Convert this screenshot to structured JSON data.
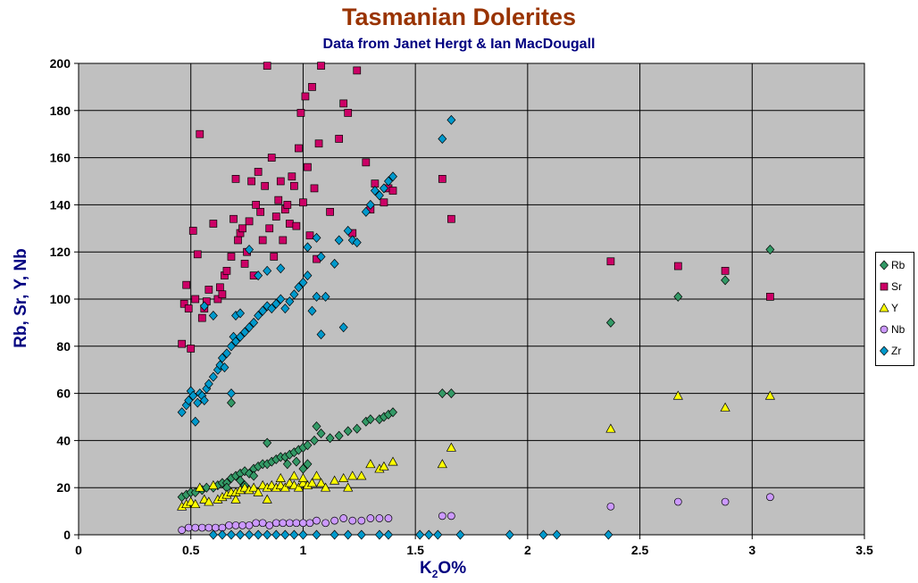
{
  "chart_data": {
    "type": "scatter",
    "title": "Tasmanian Dolerites",
    "subtitle": "Data from Janet Hergt & Ian MacDougall",
    "xlabel_main": "K",
    "xlabel_sub": "2",
    "xlabel_tail": "O%",
    "ylabel": "Rb, Sr, Y, Nb",
    "xlim": [
      0,
      3.5
    ],
    "ylim": [
      0,
      200
    ],
    "x_ticks": [
      "0",
      "0.5",
      "1",
      "1.5",
      "2",
      "2.5",
      "3",
      "3.5"
    ],
    "y_ticks": [
      "0",
      "20",
      "40",
      "60",
      "80",
      "100",
      "120",
      "140",
      "160",
      "180",
      "200"
    ],
    "grid": true,
    "legend_position": "right",
    "plot_background": "#C0C0C0",
    "series": [
      {
        "name": "Rb",
        "marker": "diamond",
        "color": "#339966",
        "points": [
          [
            0.46,
            16
          ],
          [
            0.48,
            17
          ],
          [
            0.5,
            18
          ],
          [
            0.52,
            18
          ],
          [
            0.55,
            19
          ],
          [
            0.57,
            20
          ],
          [
            0.6,
            20
          ],
          [
            0.62,
            21
          ],
          [
            0.64,
            22
          ],
          [
            0.66,
            22
          ],
          [
            0.68,
            24
          ],
          [
            0.7,
            25
          ],
          [
            0.72,
            26
          ],
          [
            0.74,
            27
          ],
          [
            0.76,
            26
          ],
          [
            0.78,
            28
          ],
          [
            0.8,
            29
          ],
          [
            0.82,
            30
          ],
          [
            0.84,
            30
          ],
          [
            0.86,
            31
          ],
          [
            0.88,
            32
          ],
          [
            0.9,
            33
          ],
          [
            0.92,
            33
          ],
          [
            0.94,
            34
          ],
          [
            0.96,
            35
          ],
          [
            0.98,
            36
          ],
          [
            1.0,
            37
          ],
          [
            1.02,
            38
          ],
          [
            1.05,
            40
          ],
          [
            1.08,
            43
          ],
          [
            1.12,
            41
          ],
          [
            1.16,
            42
          ],
          [
            1.2,
            44
          ],
          [
            1.24,
            45
          ],
          [
            1.28,
            48
          ],
          [
            1.3,
            49
          ],
          [
            1.34,
            49
          ],
          [
            1.36,
            50
          ],
          [
            1.38,
            51
          ],
          [
            1.4,
            52
          ],
          [
            0.68,
            56
          ],
          [
            0.84,
            39
          ],
          [
            1.0,
            28
          ],
          [
            1.02,
            30
          ],
          [
            0.93,
            30
          ],
          [
            0.97,
            31
          ],
          [
            0.78,
            25
          ],
          [
            0.72,
            23
          ],
          [
            0.66,
            20
          ],
          [
            0.74,
            21
          ],
          [
            1.06,
            46
          ],
          [
            1.62,
            60
          ],
          [
            1.66,
            60
          ],
          [
            2.37,
            90
          ],
          [
            2.67,
            101
          ],
          [
            2.88,
            108
          ],
          [
            3.08,
            121
          ]
        ]
      },
      {
        "name": "Sr",
        "marker": "square",
        "color": "#CC0066",
        "points": [
          [
            0.46,
            81
          ],
          [
            0.47,
            98
          ],
          [
            0.48,
            106
          ],
          [
            0.49,
            96
          ],
          [
            0.5,
            79
          ],
          [
            0.51,
            129
          ],
          [
            0.52,
            100
          ],
          [
            0.53,
            119
          ],
          [
            0.54,
            170
          ],
          [
            0.55,
            92
          ],
          [
            0.56,
            96
          ],
          [
            0.57,
            99
          ],
          [
            0.58,
            104
          ],
          [
            0.6,
            132
          ],
          [
            0.62,
            100
          ],
          [
            0.63,
            105
          ],
          [
            0.64,
            102
          ],
          [
            0.65,
            110
          ],
          [
            0.66,
            112
          ],
          [
            0.68,
            118
          ],
          [
            0.69,
            134
          ],
          [
            0.7,
            151
          ],
          [
            0.71,
            125
          ],
          [
            0.72,
            128
          ],
          [
            0.73,
            130
          ],
          [
            0.74,
            115
          ],
          [
            0.75,
            120
          ],
          [
            0.76,
            133
          ],
          [
            0.77,
            150
          ],
          [
            0.78,
            110
          ],
          [
            0.79,
            140
          ],
          [
            0.8,
            154
          ],
          [
            0.81,
            137
          ],
          [
            0.82,
            125
          ],
          [
            0.83,
            148
          ],
          [
            0.84,
            199
          ],
          [
            0.85,
            130
          ],
          [
            0.86,
            160
          ],
          [
            0.87,
            118
          ],
          [
            0.88,
            135
          ],
          [
            0.89,
            142
          ],
          [
            0.9,
            150
          ],
          [
            0.91,
            125
          ],
          [
            0.92,
            138
          ],
          [
            0.93,
            140
          ],
          [
            0.94,
            132
          ],
          [
            0.95,
            152
          ],
          [
            0.96,
            148
          ],
          [
            0.97,
            131
          ],
          [
            0.98,
            164
          ],
          [
            0.99,
            179
          ],
          [
            1.0,
            141
          ],
          [
            1.01,
            186
          ],
          [
            1.02,
            156
          ],
          [
            1.03,
            127
          ],
          [
            1.04,
            190
          ],
          [
            1.05,
            147
          ],
          [
            1.06,
            117
          ],
          [
            1.07,
            166
          ],
          [
            1.08,
            199
          ],
          [
            1.12,
            137
          ],
          [
            1.16,
            168
          ],
          [
            1.18,
            183
          ],
          [
            1.2,
            179
          ],
          [
            1.22,
            128
          ],
          [
            1.24,
            197
          ],
          [
            1.28,
            158
          ],
          [
            1.3,
            138
          ],
          [
            1.32,
            149
          ],
          [
            1.36,
            141
          ],
          [
            1.38,
            147
          ],
          [
            1.4,
            146
          ],
          [
            1.62,
            151
          ],
          [
            1.66,
            134
          ],
          [
            2.37,
            116
          ],
          [
            2.67,
            114
          ],
          [
            2.88,
            112
          ],
          [
            3.08,
            101
          ]
        ]
      },
      {
        "name": "Y",
        "marker": "triangle",
        "color": "#FFFF00",
        "points": [
          [
            0.46,
            12
          ],
          [
            0.48,
            13
          ],
          [
            0.5,
            14
          ],
          [
            0.52,
            13
          ],
          [
            0.54,
            20
          ],
          [
            0.56,
            15
          ],
          [
            0.58,
            14
          ],
          [
            0.6,
            21
          ],
          [
            0.62,
            15
          ],
          [
            0.64,
            16
          ],
          [
            0.66,
            17
          ],
          [
            0.68,
            18
          ],
          [
            0.7,
            18
          ],
          [
            0.72,
            19
          ],
          [
            0.74,
            20
          ],
          [
            0.76,
            19
          ],
          [
            0.78,
            20
          ],
          [
            0.8,
            18
          ],
          [
            0.82,
            21
          ],
          [
            0.84,
            20
          ],
          [
            0.86,
            21
          ],
          [
            0.88,
            20
          ],
          [
            0.9,
            21
          ],
          [
            0.92,
            20
          ],
          [
            0.94,
            22
          ],
          [
            0.96,
            21
          ],
          [
            0.98,
            20
          ],
          [
            1.0,
            22
          ],
          [
            1.02,
            21
          ],
          [
            1.04,
            22
          ],
          [
            1.06,
            25
          ],
          [
            1.08,
            22
          ],
          [
            1.1,
            20
          ],
          [
            1.14,
            23
          ],
          [
            1.18,
            24
          ],
          [
            1.2,
            20
          ],
          [
            1.22,
            25
          ],
          [
            1.26,
            25
          ],
          [
            1.3,
            30
          ],
          [
            1.34,
            28
          ],
          [
            1.36,
            29
          ],
          [
            1.4,
            31
          ],
          [
            0.96,
            25
          ],
          [
            1.0,
            24
          ],
          [
            0.9,
            24
          ],
          [
            0.84,
            15
          ],
          [
            0.7,
            15
          ],
          [
            1.62,
            30
          ],
          [
            1.66,
            37
          ],
          [
            2.37,
            45
          ],
          [
            2.67,
            59
          ],
          [
            2.88,
            54
          ],
          [
            3.08,
            59
          ]
        ]
      },
      {
        "name": "Nb",
        "marker": "circle",
        "color": "#CC99FF",
        "points": [
          [
            0.46,
            2
          ],
          [
            0.49,
            3
          ],
          [
            0.52,
            3
          ],
          [
            0.55,
            3
          ],
          [
            0.58,
            3
          ],
          [
            0.61,
            3
          ],
          [
            0.64,
            3
          ],
          [
            0.67,
            4
          ],
          [
            0.7,
            4
          ],
          [
            0.73,
            4
          ],
          [
            0.76,
            4
          ],
          [
            0.79,
            5
          ],
          [
            0.82,
            5
          ],
          [
            0.85,
            4
          ],
          [
            0.88,
            5
          ],
          [
            0.91,
            5
          ],
          [
            0.94,
            5
          ],
          [
            0.97,
            5
          ],
          [
            1.0,
            5
          ],
          [
            1.03,
            5
          ],
          [
            1.06,
            6
          ],
          [
            1.1,
            5
          ],
          [
            1.14,
            6
          ],
          [
            1.18,
            7
          ],
          [
            1.22,
            6
          ],
          [
            1.26,
            6
          ],
          [
            1.3,
            7
          ],
          [
            1.34,
            7
          ],
          [
            1.38,
            7
          ],
          [
            1.62,
            8
          ],
          [
            1.66,
            8
          ],
          [
            2.37,
            12
          ],
          [
            2.67,
            14
          ],
          [
            2.88,
            14
          ],
          [
            3.08,
            16
          ]
        ]
      },
      {
        "name": "Zr",
        "marker": "diamond",
        "color": "#0099CC",
        "points": [
          [
            0.46,
            52
          ],
          [
            0.48,
            55
          ],
          [
            0.49,
            57
          ],
          [
            0.5,
            61
          ],
          [
            0.51,
            59
          ],
          [
            0.52,
            48
          ],
          [
            0.53,
            56
          ],
          [
            0.54,
            60
          ],
          [
            0.55,
            59
          ],
          [
            0.56,
            57
          ],
          [
            0.57,
            62
          ],
          [
            0.58,
            64
          ],
          [
            0.6,
            67
          ],
          [
            0.62,
            70
          ],
          [
            0.63,
            72
          ],
          [
            0.64,
            75
          ],
          [
            0.65,
            71
          ],
          [
            0.66,
            77
          ],
          [
            0.68,
            80
          ],
          [
            0.69,
            84
          ],
          [
            0.7,
            82
          ],
          [
            0.72,
            84
          ],
          [
            0.74,
            86
          ],
          [
            0.76,
            88
          ],
          [
            0.78,
            90
          ],
          [
            0.8,
            93
          ],
          [
            0.82,
            95
          ],
          [
            0.84,
            97
          ],
          [
            0.86,
            96
          ],
          [
            0.88,
            98
          ],
          [
            0.9,
            100
          ],
          [
            0.92,
            96
          ],
          [
            0.94,
            99
          ],
          [
            0.96,
            102
          ],
          [
            0.98,
            105
          ],
          [
            1.0,
            107
          ],
          [
            1.02,
            110
          ],
          [
            1.04,
            95
          ],
          [
            1.06,
            101
          ],
          [
            1.08,
            118
          ],
          [
            1.1,
            101
          ],
          [
            1.14,
            115
          ],
          [
            1.16,
            125
          ],
          [
            1.2,
            129
          ],
          [
            1.22,
            125
          ],
          [
            1.24,
            124
          ],
          [
            1.28,
            137
          ],
          [
            1.3,
            140
          ],
          [
            1.32,
            146
          ],
          [
            1.34,
            144
          ],
          [
            1.36,
            147
          ],
          [
            1.38,
            150
          ],
          [
            1.4,
            152
          ],
          [
            0.6,
            93
          ],
          [
            0.7,
            93
          ],
          [
            0.72,
            94
          ],
          [
            0.76,
            121
          ],
          [
            0.8,
            110
          ],
          [
            0.84,
            112
          ],
          [
            0.9,
            113
          ],
          [
            1.02,
            122
          ],
          [
            1.06,
            126
          ],
          [
            1.08,
            85
          ],
          [
            1.18,
            88
          ],
          [
            0.68,
            60
          ],
          [
            0.56,
            97
          ],
          [
            1.62,
            168
          ],
          [
            1.66,
            176
          ],
          [
            0.6,
            0
          ],
          [
            0.64,
            0
          ],
          [
            0.68,
            0
          ],
          [
            0.72,
            0
          ],
          [
            0.76,
            0
          ],
          [
            0.8,
            0
          ],
          [
            0.84,
            0
          ],
          [
            0.88,
            0
          ],
          [
            0.92,
            0
          ],
          [
            0.96,
            0
          ],
          [
            1.0,
            0
          ],
          [
            1.06,
            0
          ],
          [
            1.14,
            0
          ],
          [
            1.2,
            0
          ],
          [
            1.26,
            0
          ],
          [
            1.34,
            0
          ],
          [
            1.38,
            0
          ],
          [
            1.52,
            0
          ],
          [
            1.56,
            0
          ],
          [
            1.6,
            0
          ],
          [
            1.7,
            0
          ],
          [
            1.92,
            0
          ],
          [
            2.07,
            0
          ],
          [
            2.13,
            0
          ],
          [
            2.36,
            0
          ]
        ]
      }
    ]
  }
}
